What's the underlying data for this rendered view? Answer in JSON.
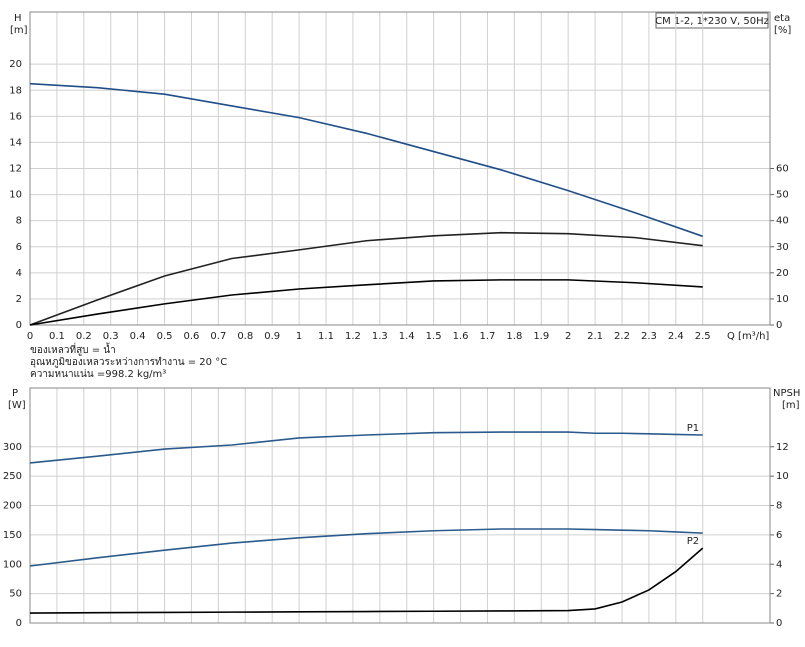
{
  "chart_data": [
    {
      "type": "line",
      "annotation": "CM 1-2, 1*230 V, 50Hz",
      "ylabel": "H",
      "ylabel_unit": "[m]",
      "y2label": "eta",
      "y2label_unit": "[%]",
      "xlabel": "Q [m³/h]",
      "notes": [
        "ของเหลวที่สูบ = น้ำ",
        "อุณหภูมิของเหลวระหว่างการทำงาน = 20 °C",
        "ความหนาแน่น =998.2 kg/m³"
      ],
      "x": [
        0,
        0.25,
        0.5,
        0.75,
        1,
        1.25,
        1.5,
        1.75,
        2,
        2.25,
        2.5
      ],
      "series": [
        {
          "color": "#1f4e89",
          "values": [
            18.5,
            18.2,
            17.7,
            16.8,
            15.9,
            14.7,
            13.3,
            11.9,
            10.3,
            8.6,
            6.8
          ]
        },
        {
          "color": "#222222",
          "axis": "y2",
          "values": [
            0,
            9.6,
            18.8,
            25.5,
            28.8,
            32.3,
            34.2,
            35.4,
            35.0,
            33.5,
            30.4
          ]
        },
        {
          "color": "#000000",
          "axis": "y2",
          "values": [
            0,
            4.2,
            8.1,
            11.5,
            13.8,
            15.4,
            16.9,
            17.3,
            17.3,
            16.2,
            14.6
          ]
        }
      ],
      "xlim": [
        0,
        2.75
      ],
      "xticks": [
        0,
        0.1,
        0.2,
        0.3,
        0.4,
        0.5,
        0.6,
        0.7,
        0.8,
        0.9,
        1,
        1.1,
        1.2,
        1.3,
        1.4,
        1.5,
        1.6,
        1.7,
        1.8,
        1.9,
        2,
        2.1,
        2.2,
        2.3,
        2.4,
        2.5
      ],
      "ylim": [
        0,
        24
      ],
      "yticks": [
        0,
        2,
        4,
        6,
        8,
        10,
        12,
        14,
        16,
        18,
        20
      ],
      "y2lim": [
        0,
        120
      ],
      "y2ticks": [
        0,
        10,
        20,
        30,
        40,
        50,
        60
      ],
      "grid": true
    },
    {
      "type": "line",
      "ylabel": "P",
      "ylabel_unit": "[W]",
      "y2label": "NPSH",
      "y2label_unit": "[m]",
      "x": [
        0,
        0.25,
        0.5,
        0.75,
        1,
        1.25,
        1.5,
        1.75,
        2,
        2.1,
        2.2,
        2.3,
        2.4,
        2.5
      ],
      "series": [
        {
          "name": "P1",
          "color": "#2a5b8c",
          "values": [
            272.5,
            284,
            296,
            303,
            315,
            320,
            324,
            325,
            325,
            323,
            323,
            322,
            321,
            320
          ]
        },
        {
          "name": "P2",
          "color": "#2a5b8c",
          "values": [
            97,
            111,
            124,
            136,
            145,
            152,
            157,
            160,
            160,
            159,
            158,
            157,
            155,
            153
          ]
        },
        {
          "color": "#000000",
          "axis": "y2",
          "values": [
            0.68,
            0.7,
            0.72,
            0.74,
            0.76,
            0.78,
            0.8,
            0.82,
            0.85,
            0.96,
            1.43,
            2.25,
            3.5,
            5.1
          ]
        }
      ],
      "xlim": [
        0,
        2.75
      ],
      "ylim": [
        0,
        400
      ],
      "yticks": [
        0,
        50,
        100,
        150,
        200,
        250,
        300
      ],
      "y2lim": [
        0,
        16
      ],
      "y2ticks": [
        0,
        2,
        4,
        6,
        8,
        10,
        12
      ],
      "grid": true
    }
  ]
}
